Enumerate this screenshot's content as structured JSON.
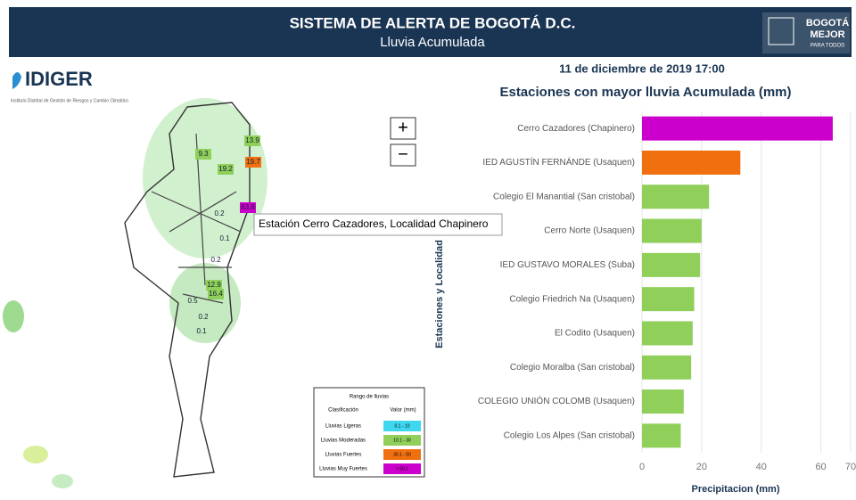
{
  "header": {
    "title": "SISTEMA DE ALERTA DE BOGOTÁ D.C.",
    "subtitle": "Lluvia Acumulada",
    "brand_line1": "BOGOTÁ",
    "brand_line2": "MEJOR",
    "brand_line3": "PARA TODOS"
  },
  "logo": {
    "name": "IDIGER",
    "tagline": "Instituto Distrital de Gestión de Riesgos y Cambio Climático"
  },
  "timestamp": "11 de diciembre de 2019 17:00",
  "map": {
    "zoom_in": "+",
    "zoom_out": "−",
    "tooltip": "Estación Cerro Cazadores, Localidad Chapinero",
    "stations": [
      "13.9",
      "19.7",
      "9.3",
      "19.2",
      "63.8",
      "0.2",
      "0.1",
      "0.2",
      "12.9",
      "16.4",
      "0.5",
      "0.2",
      "0.1"
    ],
    "legend": {
      "title": "Rango de lluvias",
      "headers": [
        "Clasificación",
        "Valor (mm)"
      ],
      "rows": [
        [
          "Lluvias Ligeras",
          "0.1 - 10"
        ],
        [
          "Lluvias Moderadas",
          "10.1 - 30"
        ],
        [
          "Lluvias Fuertes",
          "30.1 - 50"
        ],
        [
          "Lluvias Muy Fuertes",
          "> 50.1"
        ]
      ],
      "colors": [
        "#3fd7f0",
        "#8fcf5a",
        "#f07010",
        "#cc00cc"
      ]
    }
  },
  "chart_data": {
    "type": "hbar",
    "title": "Estaciones con mayor lluvia Acumulada (mm)",
    "x_label": "Precipitacion (mm)",
    "y_label": "Estaciones y Localidad",
    "categories": [
      "Cerro Cazadores (Chapinero)",
      "IED AGUSTÍN FERNÁNDE (Usaquen)",
      "Colegio El Manantial (San cristobal)",
      "Cerro Norte (Usaquen)",
      "IED GUSTAVO MORALES  (Suba)",
      "Colegio Friedrich Na (Usaquen)",
      "El Codito (Usaquen)",
      "Colegio Moralba (San cristobal)",
      "COLEGIO UNIÓN COLOMB (Usaquen)",
      "Colegio Los Alpes (San cristobal)"
    ],
    "values": [
      64,
      33,
      22.5,
      20,
      19.5,
      17.5,
      17,
      16.5,
      14,
      13
    ],
    "colors": [
      "#cc00cc",
      "#f07010",
      "#8fcf5a",
      "#8fcf5a",
      "#8fcf5a",
      "#8fcf5a",
      "#8fcf5a",
      "#8fcf5a",
      "#8fcf5a",
      "#8fcf5a"
    ],
    "xlim": [
      0,
      70
    ],
    "xticks": [
      0,
      20,
      40,
      60,
      70
    ],
    "grid": true
  }
}
